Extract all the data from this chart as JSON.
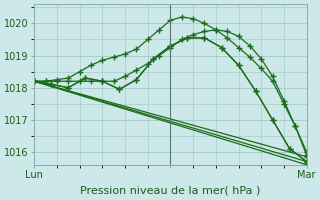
{
  "bg_color": "#cce8e8",
  "grid_color": "#aacccc",
  "line_color": "#1a6b1a",
  "xlabel": "Pression niveau de la mer( hPa )",
  "xlabel_fontsize": 8,
  "ylabel_ticks": [
    1016,
    1017,
    1018,
    1019,
    1020
  ],
  "xlim": [
    0,
    48
  ],
  "ylim": [
    1015.6,
    1020.6
  ],
  "xtick_positions": [
    0,
    24,
    48
  ],
  "xtick_labels": [
    "Lun",
    "",
    "Mar"
  ],
  "vline_x": 24,
  "series": [
    {
      "x": [
        0,
        2,
        4,
        6,
        8,
        10,
        12,
        14,
        16,
        18,
        20,
        22,
        24,
        26,
        28,
        30,
        32,
        34,
        36,
        38,
        40,
        42,
        44,
        46,
        48
      ],
      "y": [
        1018.2,
        1018.2,
        1018.25,
        1018.3,
        1018.5,
        1018.7,
        1018.85,
        1018.95,
        1019.05,
        1019.2,
        1019.5,
        1019.8,
        1020.1,
        1020.2,
        1020.15,
        1020.0,
        1019.8,
        1019.55,
        1019.25,
        1018.95,
        1018.6,
        1018.2,
        1017.5,
        1016.8,
        1016.0
      ]
    },
    {
      "x": [
        0,
        2,
        4,
        6,
        8,
        10,
        12,
        14,
        16,
        18,
        20,
        22,
        24,
        26,
        28,
        30,
        32,
        34,
        36,
        38,
        40,
        42,
        44,
        46,
        48
      ],
      "y": [
        1018.2,
        1018.2,
        1018.2,
        1018.2,
        1018.2,
        1018.2,
        1018.2,
        1018.2,
        1018.35,
        1018.55,
        1018.75,
        1019.0,
        1019.25,
        1019.5,
        1019.65,
        1019.75,
        1019.8,
        1019.75,
        1019.6,
        1019.3,
        1018.9,
        1018.35,
        1017.6,
        1016.8,
        1015.9
      ]
    },
    {
      "x": [
        0,
        3,
        6,
        9,
        12,
        15,
        18,
        21,
        24,
        27,
        30,
        33,
        36,
        39,
        42,
        45,
        48
      ],
      "y": [
        1018.2,
        1018.1,
        1018.0,
        1018.3,
        1018.2,
        1017.95,
        1018.25,
        1018.9,
        1019.3,
        1019.55,
        1019.55,
        1019.25,
        1018.7,
        1017.9,
        1017.0,
        1016.1,
        1015.7
      ]
    },
    {
      "x": [
        0,
        3,
        6,
        9,
        12,
        15,
        18,
        21,
        24,
        27,
        30,
        33,
        36,
        39,
        42,
        45,
        48
      ],
      "y": [
        1018.2,
        1018.1,
        1018.0,
        1018.3,
        1018.2,
        1017.95,
        1018.25,
        1018.9,
        1019.3,
        1019.55,
        1019.55,
        1019.25,
        1018.7,
        1017.9,
        1017.0,
        1016.1,
        1015.7
      ]
    },
    {
      "x": [
        0,
        48
      ],
      "y": [
        1018.2,
        1015.85
      ]
    },
    {
      "x": [
        0,
        48
      ],
      "y": [
        1018.2,
        1015.7
      ]
    },
    {
      "x": [
        0,
        48
      ],
      "y": [
        1018.2,
        1015.6
      ]
    }
  ]
}
